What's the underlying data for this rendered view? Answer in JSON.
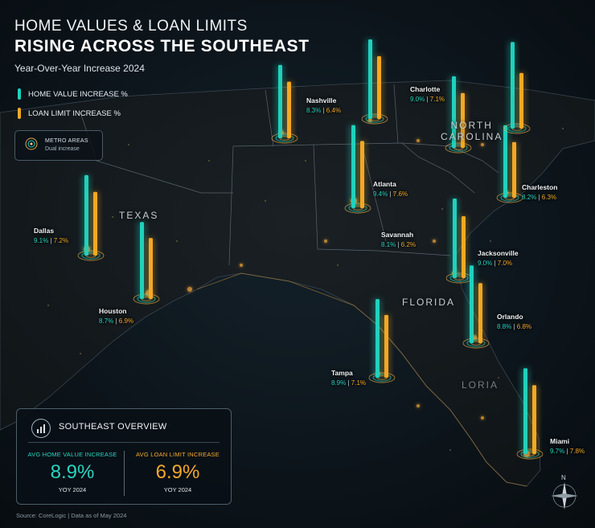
{
  "header": {
    "title_line1": "HOME VALUES & LOAN LIMITS",
    "title_line2": "RISING ACROSS THE SOUTHEAST",
    "subtitle": "Year-Over-Year Increase 2024"
  },
  "legend": {
    "home_value_label": "HOME VALUE INCREASE %",
    "loan_limit_label": "LOAN LIMIT INCREASE %",
    "metro_title": "METRO AREAS",
    "metro_subtitle": "Dual increase"
  },
  "colors": {
    "home_value": "#1fd1bd",
    "loan_limit": "#f4a823",
    "background": "#0a1117"
  },
  "regions": {
    "texas": "TEXAS",
    "north_carolina_l1": "NORTH",
    "north_carolina_l2": "CAROLINA",
    "florida": "FLORIDA",
    "florida_faint": "LORIA"
  },
  "cities": [
    {
      "name": "Nashville",
      "home": "8.3%",
      "loan": "6.4%",
      "home_value": 8.3,
      "loan_value": 6.4
    },
    {
      "name": "Charlotte",
      "home": "9.0%",
      "loan": "7.1%",
      "home_value": 9.0,
      "loan_value": 7.1
    },
    {
      "name": "Atlanta",
      "home": "9.4%",
      "loan": "7.6%",
      "home_value": 9.4,
      "loan_value": 7.6
    },
    {
      "name": "Charleston",
      "home": "8.2%",
      "loan": "6.3%",
      "home_value": 8.2,
      "loan_value": 6.3
    },
    {
      "name": "Dallas",
      "home": "9.1%",
      "loan": "7.2%",
      "home_value": 9.1,
      "loan_value": 7.2
    },
    {
      "name": "Savannah",
      "home": "8.1%",
      "loan": "6.2%",
      "home_value": 8.1,
      "loan_value": 6.2
    },
    {
      "name": "Jacksonville",
      "home": "9.0%",
      "loan": "7.0%",
      "home_value": 9.0,
      "loan_value": 7.0
    },
    {
      "name": "Houston",
      "home": "8.7%",
      "loan": "6.9%",
      "home_value": 8.7,
      "loan_value": 6.9
    },
    {
      "name": "Orlando",
      "home": "8.8%",
      "loan": "6.8%",
      "home_value": 8.8,
      "loan_value": 6.8
    },
    {
      "name": "Tampa",
      "home": "8.9%",
      "loan": "7.1%",
      "home_value": 8.9,
      "loan_value": 7.1
    },
    {
      "name": "Miami",
      "home": "9.7%",
      "loan": "7.8%",
      "home_value": 9.7,
      "loan_value": 7.8
    }
  ],
  "overview": {
    "title": "SOUTHEAST OVERVIEW",
    "home_label": "AVG HOME VALUE INCREASE",
    "home_value": "8.9%",
    "home_period": "YOY 2024",
    "loan_label": "AVG LOAN LIMIT INCREASE",
    "loan_value": "6.9%",
    "loan_period": "YOY 2024"
  },
  "compass": {
    "north": "N"
  },
  "source": "Source: CoreLogic | Data as of May 2024"
}
